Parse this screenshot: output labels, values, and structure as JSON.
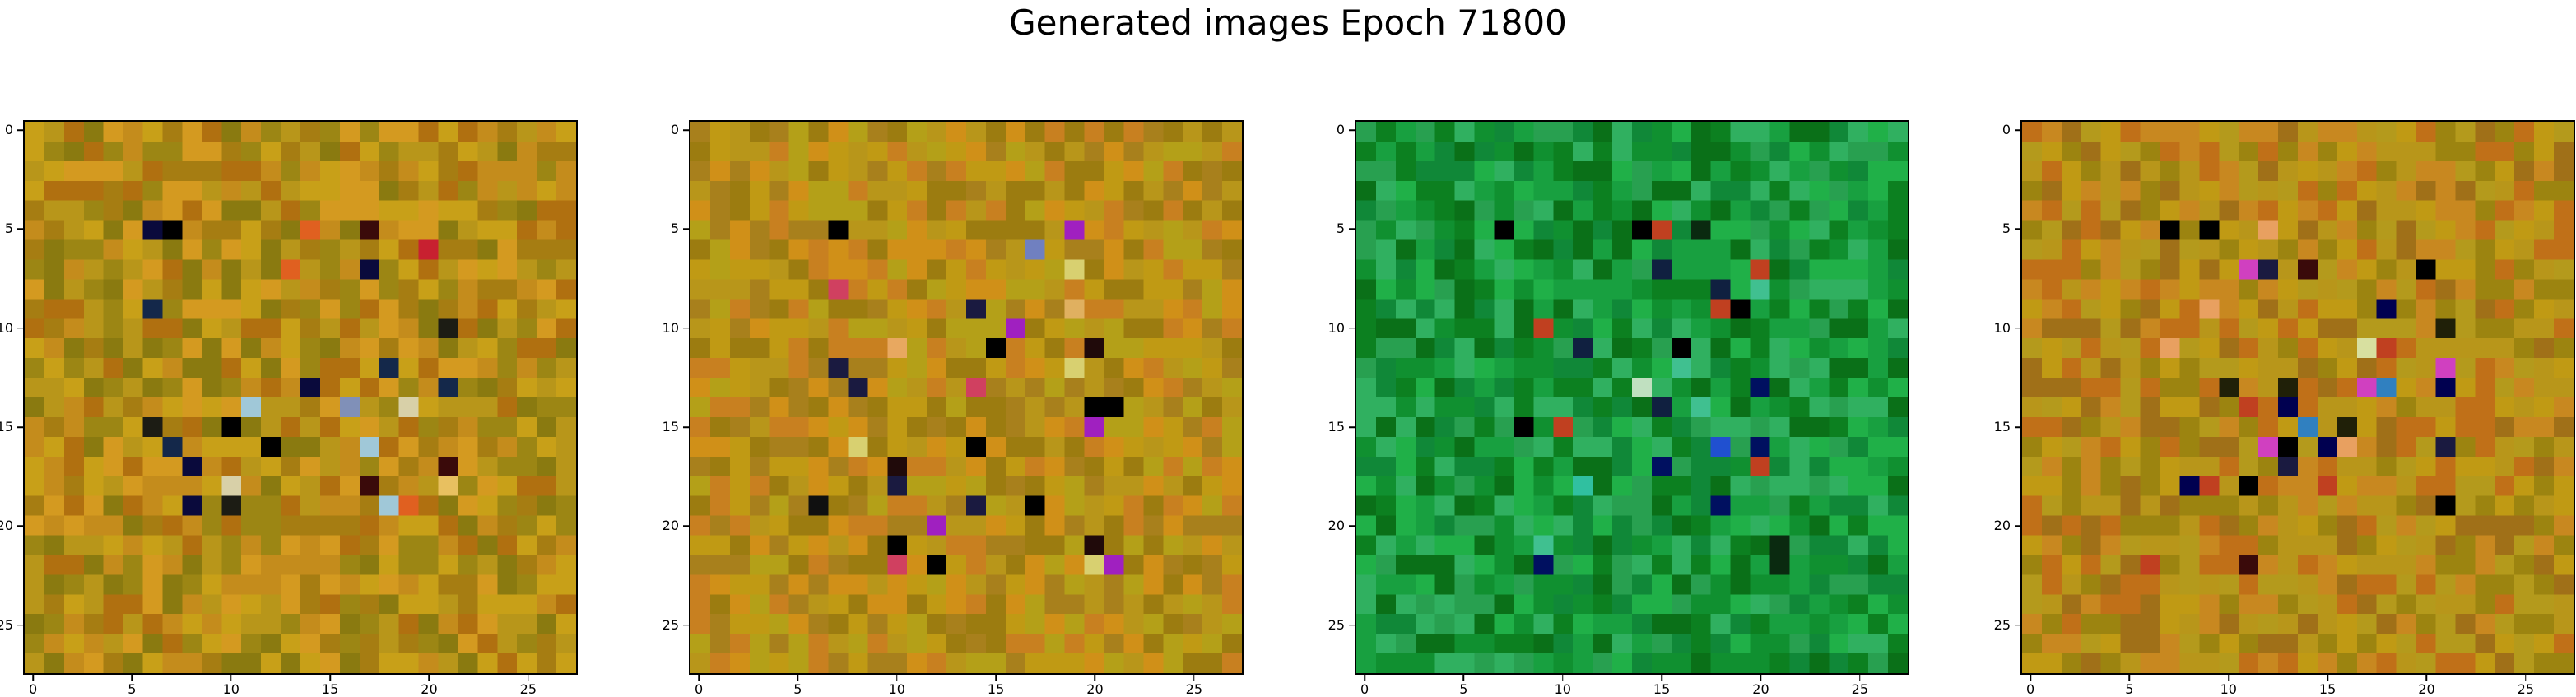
{
  "title": "Generated images Epoch 71800",
  "chart_data": {
    "type": "heatmap",
    "title": "Generated images Epoch 71800",
    "grid_size": [
      28,
      28
    ],
    "x_ticks": [
      0,
      5,
      10,
      15,
      20,
      25
    ],
    "y_ticks": [
      0,
      5,
      10,
      15,
      20,
      25
    ],
    "xlim": [
      -0.5,
      27.5
    ],
    "ylim": [
      27.5,
      -0.5
    ],
    "grid": false,
    "panels": [
      {
        "palette": [
          "#b8961a",
          "#c8a018",
          "#9c8614",
          "#d49a20",
          "#a67d12",
          "#8a7a10",
          "#c48c1c",
          "#b07010"
        ],
        "dark": [
          "#000000",
          "#0a0a3c",
          "#1c1c14",
          "#3a0a0a",
          "#14284a"
        ],
        "accent": [
          "#e8c060",
          "#d8d0a8",
          "#e06020",
          "#8090b8",
          "#a0c8d8",
          "#c82030"
        ]
      },
      {
        "palette": [
          "#b8961a",
          "#c09a14",
          "#a8801c",
          "#d09018",
          "#9c7c10",
          "#b4a018",
          "#c88020"
        ],
        "dark": [
          "#000000",
          "#000060",
          "#200a0a",
          "#101010",
          "#1a1a40"
        ],
        "accent": [
          "#e8a860",
          "#7080c0",
          "#a020c0",
          "#d04060",
          "#d8d070",
          "#e0b060"
        ]
      },
      {
        "palette": [
          "#109030",
          "#18a040",
          "#0c8020",
          "#20b048",
          "#108838",
          "#28a050",
          "#0a7018",
          "#30b060"
        ],
        "dark": [
          "#000000",
          "#001060",
          "#0a2a10",
          "#102040"
        ],
        "accent": [
          "#40c090",
          "#2050d0",
          "#c04020",
          "#60d080",
          "#c0e0c0",
          "#30c0a0"
        ]
      },
      {
        "palette": [
          "#b8961a",
          "#c09a14",
          "#a07018",
          "#c88820",
          "#9c8410",
          "#b49a1c",
          "#c07018"
        ],
        "dark": [
          "#000000",
          "#000050",
          "#3a0a0a",
          "#202008",
          "#1a1a40"
        ],
        "accent": [
          "#e8a060",
          "#d040c0",
          "#3080c0",
          "#e06020",
          "#d8e0a0",
          "#c04020"
        ]
      }
    ]
  }
}
